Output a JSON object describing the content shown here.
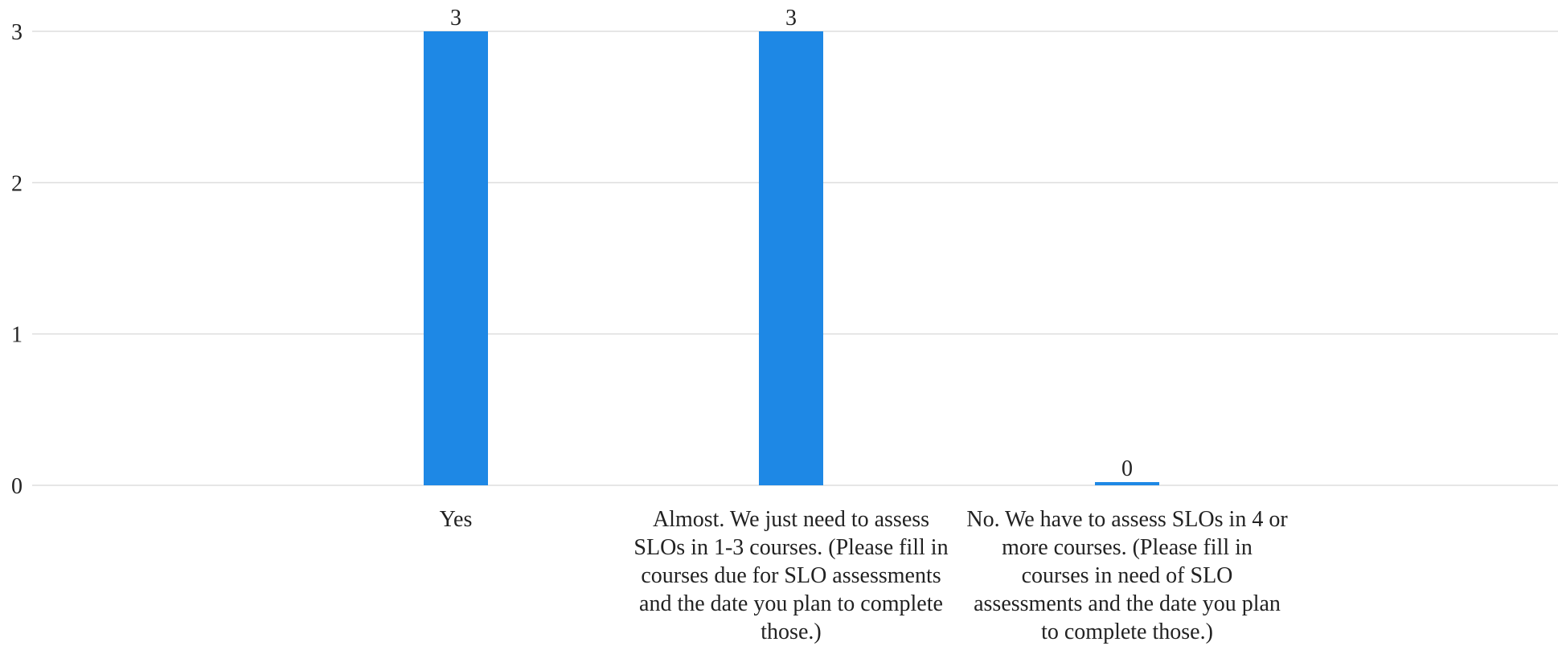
{
  "chart_data": {
    "type": "bar",
    "categories": [
      "Yes",
      "Almost. We just need to assess SLOs in 1-3 courses. (Please fill in courses due for SLO assessments and the date you plan to complete those.)",
      "No. We have to assess SLOs in 4 or more courses. (Please fill in courses in need of SLO assessments and the date you plan to complete those.)"
    ],
    "values": [
      3,
      3,
      0
    ],
    "data_labels": [
      "3",
      "3",
      "0"
    ],
    "title": "",
    "xlabel": "",
    "ylabel": "",
    "ylim": [
      0,
      3
    ],
    "yticks": [
      0,
      1,
      2,
      3
    ],
    "ytick_labels": [
      "0",
      "1",
      "2",
      "3"
    ],
    "grid": true,
    "legend": "none",
    "colors": {
      "bar": "#1e88e5",
      "grid": "#dddddd",
      "text": "#222222"
    }
  }
}
